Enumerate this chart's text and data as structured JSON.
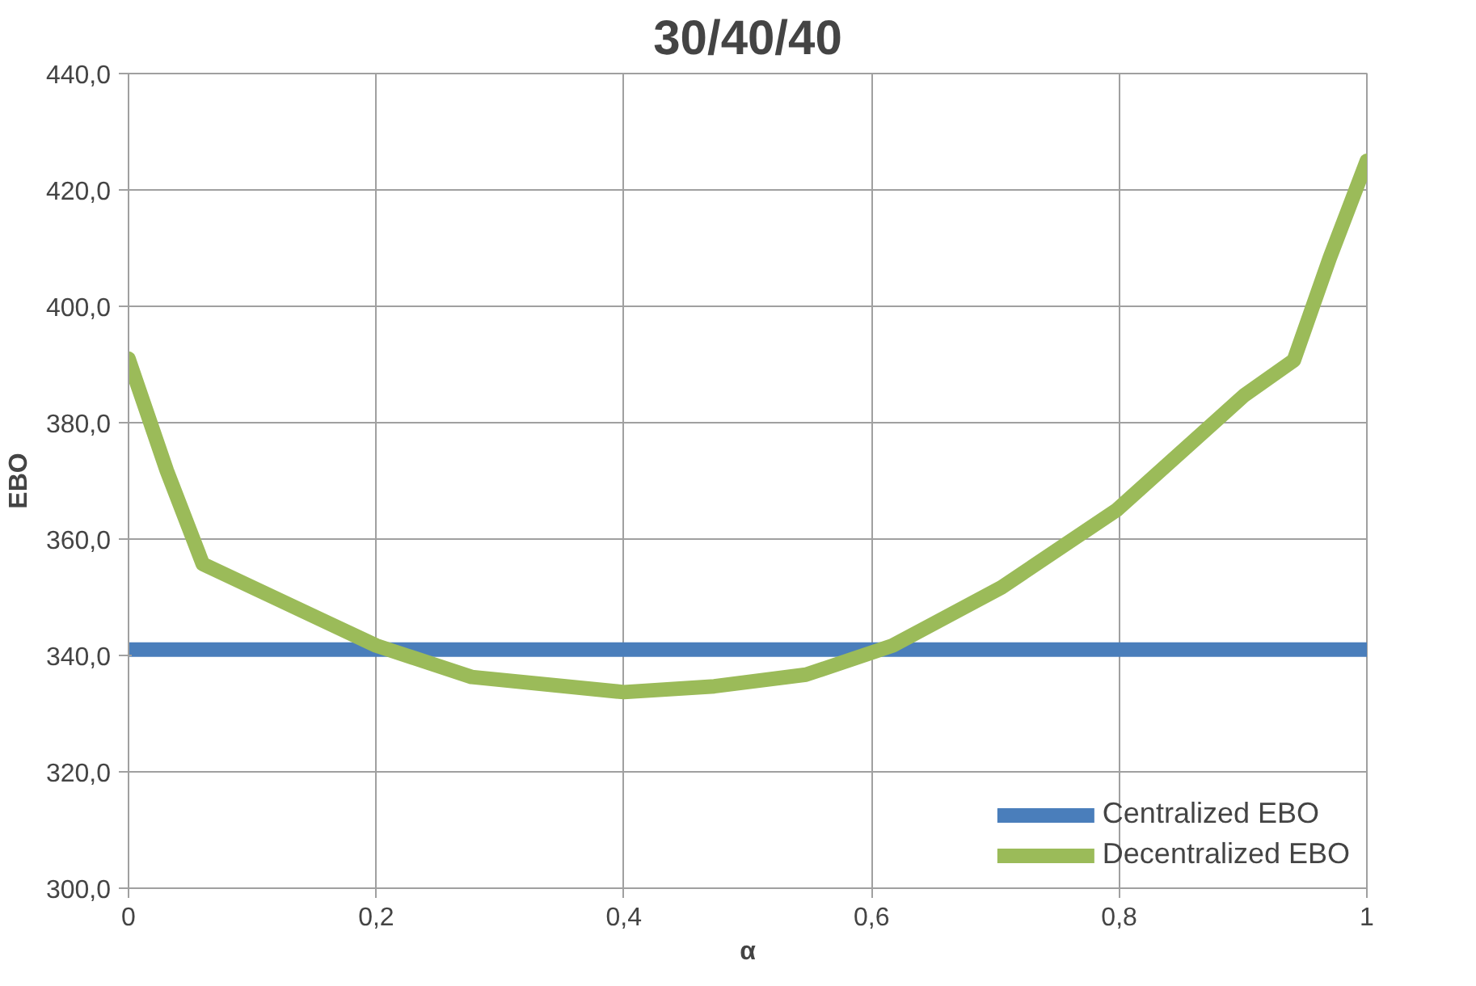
{
  "chart_data": {
    "type": "line",
    "title": "30/40/40",
    "xlabel": "α",
    "ylabel": "EBO",
    "xlim": [
      0,
      1
    ],
    "xticks": [
      {
        "value": 0,
        "label": "0"
      },
      {
        "value": 0.2,
        "label": "0,2"
      },
      {
        "value": 0.4,
        "label": "0,4"
      },
      {
        "value": 0.6,
        "label": "0,6"
      },
      {
        "value": 0.8,
        "label": "0,8"
      },
      {
        "value": 1,
        "label": "1"
      }
    ],
    "ylim": [
      300,
      440
    ],
    "yticks": [
      {
        "value": 300,
        "label": "300,0"
      },
      {
        "value": 320,
        "label": "320,0"
      },
      {
        "value": 340,
        "label": "340,0"
      },
      {
        "value": 360,
        "label": "360,0"
      },
      {
        "value": 380,
        "label": "380,0"
      },
      {
        "value": 400,
        "label": "400,0"
      },
      {
        "value": 420,
        "label": "420,0"
      },
      {
        "value": 440,
        "label": "440,0"
      }
    ],
    "grid": true,
    "legend": "bottom right",
    "marker": "none",
    "line_style": "solid",
    "series": [
      {
        "name": "Centralized EBO",
        "color": "#4a7ebb",
        "x": [
          0,
          1
        ],
        "values": [
          341,
          341
        ]
      },
      {
        "name": "Decentralized EBO",
        "color": "#9bbb59",
        "x": [
          0,
          0.031,
          0.06,
          0.12,
          0.2,
          0.277,
          0.4,
          0.473,
          0.547,
          0.617,
          0.705,
          0.798,
          0.901,
          0.941,
          0.97,
          1
        ],
        "values": [
          391,
          371.7,
          355.7,
          349.7,
          341.7,
          336.3,
          333.7,
          334.7,
          336.7,
          341.7,
          351.7,
          365,
          384.7,
          390.7,
          408.3,
          425
        ]
      }
    ]
  }
}
